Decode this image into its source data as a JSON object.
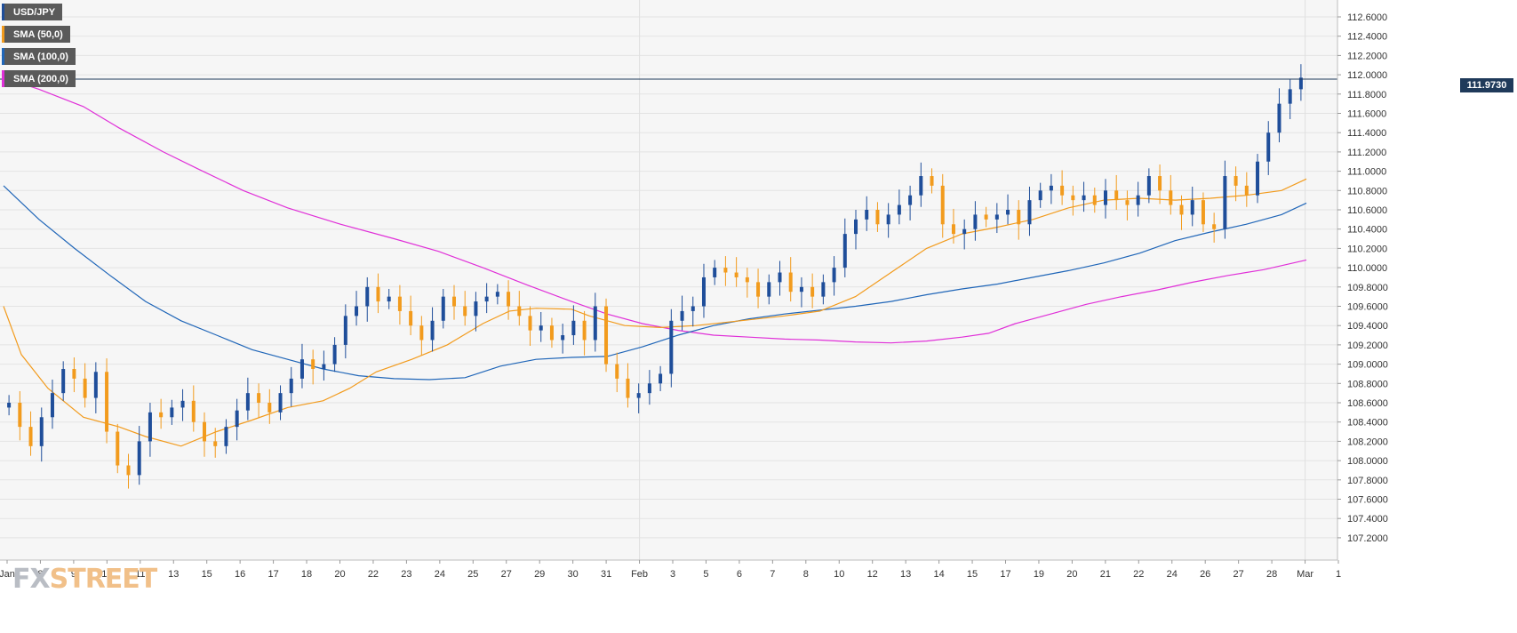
{
  "legend": [
    {
      "label": "USD/JPY",
      "color": "#1f4e9a"
    },
    {
      "label": "SMA (50,0)",
      "color": "#f29b1d"
    },
    {
      "label": "SMA (100,0)",
      "color": "#2066b8"
    },
    {
      "label": "SMA (200,0)",
      "color": "#e030d8"
    }
  ],
  "logo": {
    "part1": "FX",
    "part2": "STREET"
  },
  "current_price": "111.9730",
  "colors": {
    "bull": "#1f4e9a",
    "bear": "#f29b1d",
    "sma50": "#f29b1d",
    "sma100": "#2066b8",
    "sma200": "#e030d8",
    "grid": "#e3e3e3",
    "background": "#f6f6f6"
  },
  "chart_data": {
    "type": "line",
    "title": "USD/JPY",
    "ylim": [
      107.0,
      112.8
    ],
    "y_ticks": [
      "112.6000",
      "112.4000",
      "112.2000",
      "112.0000",
      "111.8000",
      "111.6000",
      "111.4000",
      "111.2000",
      "111.0000",
      "110.8000",
      "110.6000",
      "110.4000",
      "110.2000",
      "110.0000",
      "109.8000",
      "109.6000",
      "109.4000",
      "109.2000",
      "109.0000",
      "108.8000",
      "108.6000",
      "108.4000",
      "108.2000",
      "108.0000",
      "107.8000",
      "107.6000",
      "107.4000",
      "107.2000"
    ],
    "x_ticks": [
      "Jan",
      "8",
      "9",
      "10",
      "11",
      "13",
      "15",
      "16",
      "17",
      "18",
      "20",
      "22",
      "23",
      "24",
      "25",
      "27",
      "29",
      "30",
      "31",
      "Feb",
      "3",
      "5",
      "6",
      "7",
      "8",
      "10",
      "12",
      "13",
      "14",
      "15",
      "17",
      "19",
      "20",
      "21",
      "22",
      "24",
      "26",
      "27",
      "28",
      "Mar",
      "1"
    ],
    "grid": true,
    "legend_position": "top-left",
    "series": [
      {
        "name": "USD/JPY",
        "type": "candlestick",
        "close_path": [
          108.6,
          108.35,
          108.15,
          108.45,
          108.7,
          108.95,
          108.85,
          108.65,
          108.92,
          108.3,
          107.95,
          107.85,
          108.2,
          108.5,
          108.45,
          108.55,
          108.62,
          108.4,
          108.2,
          108.15,
          108.35,
          108.52,
          108.7,
          108.6,
          108.5,
          108.7,
          108.85,
          109.05,
          108.95,
          109.0,
          109.2,
          109.5,
          109.6,
          109.8,
          109.65,
          109.7,
          109.55,
          109.4,
          109.25,
          109.45,
          109.7,
          109.6,
          109.5,
          109.65,
          109.7,
          109.75,
          109.6,
          109.5,
          109.35,
          109.4,
          109.25,
          109.3,
          109.45,
          109.25,
          109.6,
          109.0,
          108.85,
          108.65,
          108.7,
          108.8,
          108.9,
          109.45,
          109.55,
          109.6,
          109.9,
          110.0,
          109.95,
          109.9,
          109.85,
          109.7,
          109.85,
          109.95,
          109.75,
          109.8,
          109.7,
          109.85,
          110.0,
          110.35,
          110.5,
          110.6,
          110.45,
          110.55,
          110.65,
          110.75,
          110.95,
          110.85,
          110.45,
          110.35,
          110.4,
          110.55,
          110.5,
          110.55,
          110.6,
          110.45,
          110.7,
          110.8,
          110.85,
          110.75,
          110.7,
          110.75,
          110.65,
          110.8,
          110.7,
          110.65,
          110.75,
          110.95,
          110.8,
          110.65,
          110.55,
          110.7,
          110.45,
          110.4,
          110.95,
          110.85,
          110.75,
          111.1,
          111.4,
          111.7,
          111.85,
          111.97
        ]
      },
      {
        "name": "SMA (50,0)",
        "values": [
          [
            0,
            109.6
          ],
          [
            20,
            109.1
          ],
          [
            50,
            108.75
          ],
          [
            90,
            108.45
          ],
          [
            130,
            108.35
          ],
          [
            160,
            108.25
          ],
          [
            200,
            108.15
          ],
          [
            240,
            108.3
          ],
          [
            280,
            108.42
          ],
          [
            320,
            108.55
          ],
          [
            360,
            108.62
          ],
          [
            390,
            108.75
          ],
          [
            420,
            108.92
          ],
          [
            460,
            109.05
          ],
          [
            500,
            109.2
          ],
          [
            540,
            109.42
          ],
          [
            570,
            109.55
          ],
          [
            600,
            109.58
          ],
          [
            640,
            109.57
          ],
          [
            660,
            109.5
          ],
          [
            700,
            109.4
          ],
          [
            740,
            109.38
          ],
          [
            780,
            109.4
          ],
          [
            830,
            109.45
          ],
          [
            880,
            109.5
          ],
          [
            920,
            109.55
          ],
          [
            960,
            109.7
          ],
          [
            1000,
            109.95
          ],
          [
            1040,
            110.2
          ],
          [
            1080,
            110.35
          ],
          [
            1120,
            110.42
          ],
          [
            1160,
            110.5
          ],
          [
            1200,
            110.62
          ],
          [
            1240,
            110.7
          ],
          [
            1280,
            110.72
          ],
          [
            1320,
            110.7
          ],
          [
            1360,
            110.72
          ],
          [
            1400,
            110.75
          ],
          [
            1440,
            110.8
          ],
          [
            1468,
            110.92
          ]
        ]
      },
      {
        "name": "SMA (100,0)",
        "values": [
          [
            0,
            110.85
          ],
          [
            40,
            110.5
          ],
          [
            80,
            110.2
          ],
          [
            120,
            109.92
          ],
          [
            160,
            109.65
          ],
          [
            200,
            109.45
          ],
          [
            240,
            109.3
          ],
          [
            280,
            109.15
          ],
          [
            320,
            109.05
          ],
          [
            360,
            108.95
          ],
          [
            400,
            108.88
          ],
          [
            440,
            108.85
          ],
          [
            480,
            108.84
          ],
          [
            520,
            108.86
          ],
          [
            560,
            108.98
          ],
          [
            600,
            109.05
          ],
          [
            640,
            109.07
          ],
          [
            680,
            109.08
          ],
          [
            720,
            109.18
          ],
          [
            760,
            109.3
          ],
          [
            800,
            109.4
          ],
          [
            840,
            109.47
          ],
          [
            880,
            109.52
          ],
          [
            920,
            109.56
          ],
          [
            960,
            109.6
          ],
          [
            1000,
            109.65
          ],
          [
            1040,
            109.72
          ],
          [
            1080,
            109.78
          ],
          [
            1120,
            109.83
          ],
          [
            1160,
            109.9
          ],
          [
            1200,
            109.97
          ],
          [
            1240,
            110.05
          ],
          [
            1280,
            110.15
          ],
          [
            1320,
            110.28
          ],
          [
            1360,
            110.37
          ],
          [
            1400,
            110.45
          ],
          [
            1440,
            110.55
          ],
          [
            1468,
            110.67
          ]
        ]
      },
      {
        "name": "SMA (200,0)",
        "values": [
          [
            0,
            111.97
          ],
          [
            40,
            111.85
          ],
          [
            90,
            111.67
          ],
          [
            130,
            111.45
          ],
          [
            180,
            111.2
          ],
          [
            220,
            111.02
          ],
          [
            270,
            110.8
          ],
          [
            320,
            110.62
          ],
          [
            380,
            110.45
          ],
          [
            440,
            110.3
          ],
          [
            490,
            110.17
          ],
          [
            540,
            110.0
          ],
          [
            590,
            109.82
          ],
          [
            640,
            109.65
          ],
          [
            680,
            109.52
          ],
          [
            720,
            109.42
          ],
          [
            760,
            109.35
          ],
          [
            800,
            109.3
          ],
          [
            840,
            109.28
          ],
          [
            880,
            109.26
          ],
          [
            920,
            109.25
          ],
          [
            960,
            109.23
          ],
          [
            1000,
            109.22
          ],
          [
            1040,
            109.24
          ],
          [
            1080,
            109.28
          ],
          [
            1110,
            109.32
          ],
          [
            1140,
            109.42
          ],
          [
            1180,
            109.52
          ],
          [
            1220,
            109.62
          ],
          [
            1260,
            109.7
          ],
          [
            1300,
            109.77
          ],
          [
            1340,
            109.85
          ],
          [
            1380,
            109.92
          ],
          [
            1420,
            109.98
          ],
          [
            1468,
            110.08
          ]
        ]
      }
    ]
  }
}
